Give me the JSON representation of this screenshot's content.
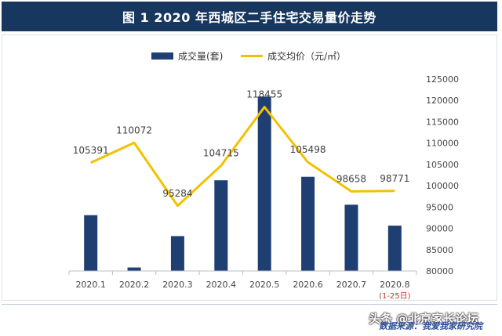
{
  "title": "图 1    2020 年西城区二手住宅交易量价走势",
  "source_text": "数据来源：我爱我家研究院",
  "watermark_text": "头条 @北京家长论坛",
  "chart_data": {
    "type": "bar+line",
    "categories": [
      "2020.1",
      "2020.2",
      "2020.3",
      "2020.4",
      "2020.5",
      "2020.6",
      "2020.7",
      "2020.8"
    ],
    "category_notes": [
      "",
      "",
      "",
      "",
      "",
      "",
      "",
      "(1-25日)"
    ],
    "series": [
      {
        "name": "成交量(套)",
        "kind": "bar",
        "axis": "left",
        "color": "#1f3f73",
        "values": [
          64,
          4,
          40,
          104,
          200,
          108,
          76,
          52
        ]
      },
      {
        "name": "成交均价（元/㎡）",
        "kind": "line",
        "axis": "right",
        "color": "#f2c200",
        "values": [
          105391,
          110072,
          95284,
          104715,
          118455,
          105498,
          98658,
          98771
        ],
        "labels": [
          "105391",
          "110072",
          "95284",
          "104715",
          "118455",
          "105498",
          "98658",
          "98771"
        ]
      }
    ],
    "left_axis": {
      "min": 0,
      "max": 220,
      "visible": false
    },
    "right_axis": {
      "min": 80000,
      "max": 125000,
      "step": 5000,
      "ticks": [
        "80000",
        "85000",
        "90000",
        "95000",
        "100000",
        "105000",
        "110000",
        "115000",
        "120000",
        "125000"
      ]
    },
    "legend_position": "top-center",
    "grid": false
  }
}
